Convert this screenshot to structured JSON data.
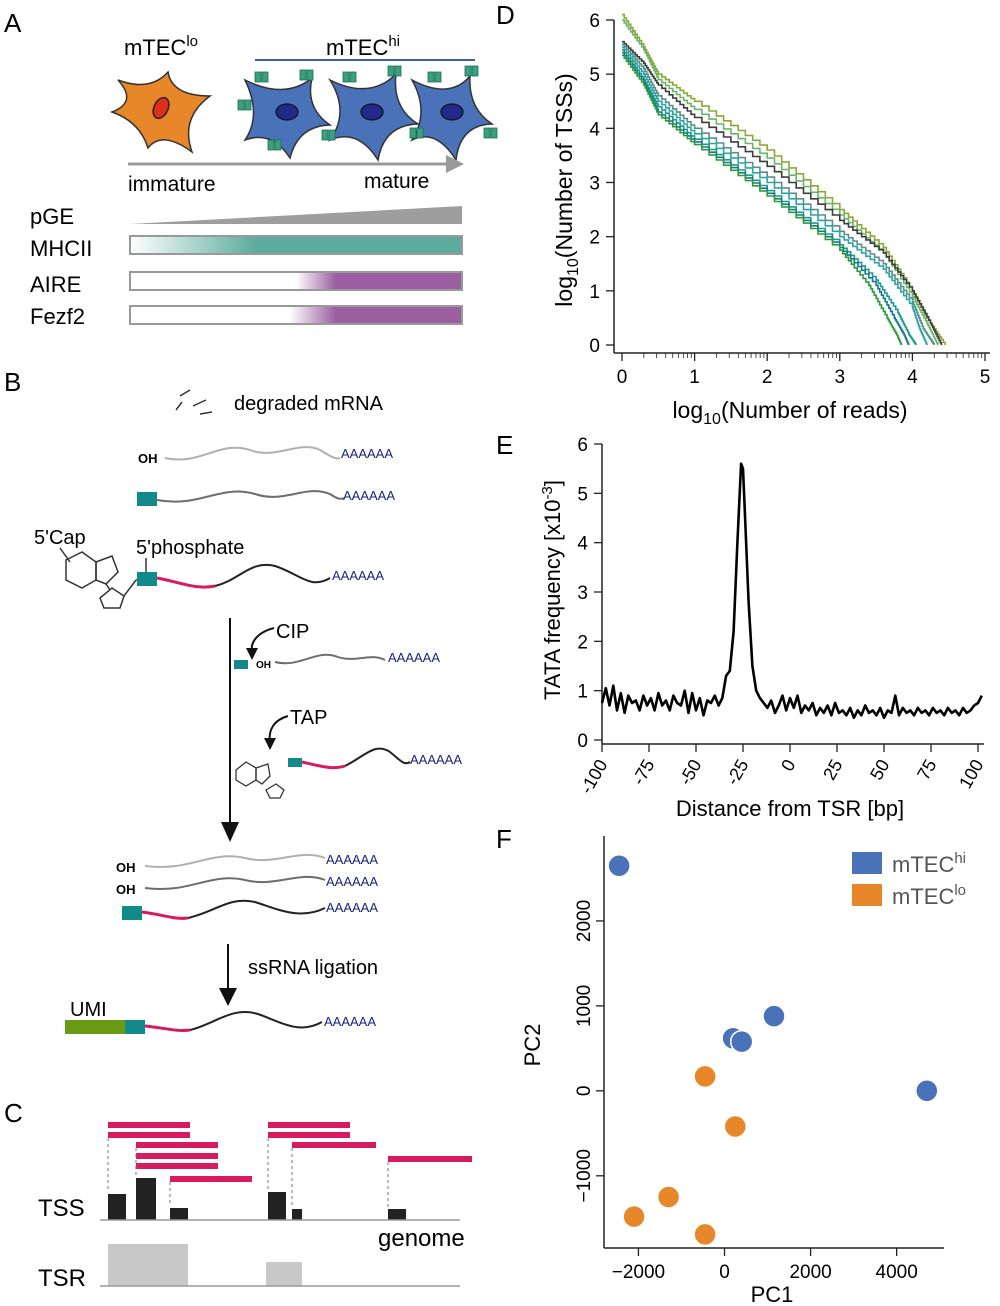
{
  "panels": {
    "A": {
      "letter": "A",
      "mtec_lo": "mTEC",
      "mtec_lo_sup": "lo",
      "mtec_hi": "mTEC",
      "mtec_hi_sup": "hi",
      "immature": "immature",
      "mature": "mature",
      "rows": [
        "pGE",
        "MHCII",
        "AIRE",
        "Fezf2"
      ],
      "colors": {
        "lo_cell": "#e8862a",
        "hi_cell": "#4a72b8",
        "mhc": "#5aac9c",
        "aire": "#9b5ea1",
        "pge": "#9e9e9e"
      }
    },
    "B": {
      "letter": "B",
      "degraded": "degraded mRNA",
      "oh": "OH",
      "polyA": "AAAAAA",
      "cap": "5'Cap",
      "phosphate": "5'phosphate",
      "cip": "CIP",
      "tap": "TAP",
      "ligation": "ssRNA ligation",
      "umi": "UMI",
      "colors": {
        "teal": "#138a8a",
        "magenta": "#d81b60",
        "umi": "#6a9a14",
        "polyA": "#1a237e"
      }
    },
    "C": {
      "letter": "C",
      "tss": "TSS",
      "tsr": "TSR",
      "genome": "genome"
    },
    "D": {
      "letter": "D",
      "xlabel_pre": "log",
      "xlabel_sub": "10",
      "xlabel_post": "(Number of reads)",
      "ylabel_pre": "log",
      "ylabel_sub": "10",
      "ylabel_post": "(Number of TSSs)"
    },
    "E": {
      "letter": "E",
      "xlabel": "Distance from TSR [bp]",
      "ylabel_pre": "TATA frequency [x10",
      "ylabel_sup": "-3",
      "ylabel_post": "]"
    },
    "F": {
      "letter": "F",
      "xlabel": "PC1",
      "ylabel": "PC2",
      "legend": [
        {
          "label": "mTEC",
          "sup": "hi",
          "color": "#4a72b8"
        },
        {
          "label": "mTEC",
          "sup": "lo",
          "color": "#e8862a"
        }
      ]
    }
  },
  "chart_data": [
    {
      "panel": "D",
      "type": "line",
      "xlim": [
        0,
        5
      ],
      "ylim": [
        0,
        6
      ],
      "xticks": [
        "0",
        "1",
        "2",
        "3",
        "4",
        "5"
      ],
      "yticks": [
        "0",
        "1",
        "2",
        "3",
        "4",
        "5",
        "6"
      ],
      "xlabel": "log10(Number of reads)",
      "ylabel": "log10(Number of TSSs)",
      "series": [
        {
          "color": "#8aa83a",
          "points": [
            [
              0,
              6.1
            ],
            [
              0.3,
              5.5
            ],
            [
              0.5,
              5.0
            ],
            [
              1,
              4.5
            ],
            [
              2,
              3.6
            ],
            [
              3,
              2.5
            ],
            [
              3.6,
              1.8
            ],
            [
              4,
              1.0
            ],
            [
              4.2,
              0.5
            ],
            [
              4.45,
              0
            ]
          ]
        },
        {
          "color": "#6bb56b",
          "points": [
            [
              0,
              6.0
            ],
            [
              0.3,
              5.45
            ],
            [
              0.5,
              4.9
            ],
            [
              1,
              4.35
            ],
            [
              2,
              3.45
            ],
            [
              3,
              2.4
            ],
            [
              3.6,
              1.7
            ],
            [
              4,
              0.9
            ],
            [
              4.2,
              0.4
            ],
            [
              4.35,
              0
            ]
          ]
        },
        {
          "color": "#3d3d3d",
          "points": [
            [
              0,
              5.6
            ],
            [
              0.3,
              5.2
            ],
            [
              0.5,
              4.8
            ],
            [
              1,
              4.2
            ],
            [
              2,
              3.3
            ],
            [
              3,
              2.3
            ],
            [
              3.6,
              1.7
            ],
            [
              4,
              1.0
            ],
            [
              4.25,
              0.4
            ],
            [
              4.4,
              0
            ]
          ]
        },
        {
          "color": "#5a8f8a",
          "points": [
            [
              0,
              5.55
            ],
            [
              0.3,
              5.1
            ],
            [
              0.5,
              4.6
            ],
            [
              1,
              4.0
            ],
            [
              2,
              3.1
            ],
            [
              3,
              2.1
            ],
            [
              3.6,
              1.5
            ],
            [
              4,
              0.8
            ],
            [
              4.15,
              0.3
            ],
            [
              4.3,
              0
            ]
          ]
        },
        {
          "color": "#2aa6a6",
          "points": [
            [
              0,
              5.5
            ],
            [
              0.3,
              5.0
            ],
            [
              0.5,
              4.5
            ],
            [
              1,
              3.9
            ],
            [
              2,
              3.0
            ],
            [
              3,
              2.0
            ],
            [
              3.6,
              1.4
            ],
            [
              4,
              0.7
            ],
            [
              4.1,
              0.3
            ],
            [
              4.2,
              0
            ]
          ]
        },
        {
          "color": "#1e9a8a",
          "points": [
            [
              0,
              5.45
            ],
            [
              0.3,
              4.9
            ],
            [
              0.5,
              4.4
            ],
            [
              1,
              3.8
            ],
            [
              2,
              2.85
            ],
            [
              3,
              1.85
            ],
            [
              3.5,
              1.2
            ],
            [
              3.8,
              0.6
            ],
            [
              3.95,
              0.2
            ],
            [
              4.05,
              0
            ]
          ]
        },
        {
          "color": "#167a8a",
          "points": [
            [
              0,
              5.4
            ],
            [
              0.3,
              4.85
            ],
            [
              0.5,
              4.3
            ],
            [
              1,
              3.75
            ],
            [
              2,
              2.8
            ],
            [
              3,
              1.8
            ],
            [
              3.5,
              1.1
            ],
            [
              3.75,
              0.5
            ],
            [
              3.9,
              0.15
            ],
            [
              3.95,
              0
            ]
          ]
        },
        {
          "color": "#2d9b3a",
          "points": [
            [
              0,
              5.35
            ],
            [
              0.3,
              4.8
            ],
            [
              0.5,
              4.25
            ],
            [
              1,
              3.7
            ],
            [
              2,
              2.75
            ],
            [
              3,
              1.75
            ],
            [
              3.4,
              1.1
            ],
            [
              3.65,
              0.5
            ],
            [
              3.8,
              0.15
            ],
            [
              3.85,
              0
            ]
          ]
        }
      ]
    },
    {
      "panel": "E",
      "type": "line",
      "xlim": [
        -100,
        100
      ],
      "ylim": [
        0,
        6
      ],
      "xticks": [
        "-100",
        "-75",
        "-50",
        "-25",
        "0",
        "25",
        "50",
        "75",
        "100"
      ],
      "yticks": [
        "0",
        "1",
        "2",
        "3",
        "4",
        "5",
        "6"
      ],
      "xlabel": "Distance from TSR [bp]",
      "ylabel": "TATA frequency [x10-3]",
      "series": [
        {
          "color": "#000000",
          "points": [
            [
              -100,
              0.75
            ],
            [
              -98,
              1.05
            ],
            [
              -96,
              0.7
            ],
            [
              -94,
              1.1
            ],
            [
              -92,
              0.6
            ],
            [
              -90,
              0.95
            ],
            [
              -88,
              0.55
            ],
            [
              -86,
              0.9
            ],
            [
              -84,
              0.75
            ],
            [
              -82,
              0.8
            ],
            [
              -80,
              0.6
            ],
            [
              -78,
              0.9
            ],
            [
              -76,
              0.7
            ],
            [
              -74,
              0.85
            ],
            [
              -72,
              0.6
            ],
            [
              -70,
              0.95
            ],
            [
              -68,
              0.7
            ],
            [
              -66,
              0.8
            ],
            [
              -64,
              0.6
            ],
            [
              -62,
              0.9
            ],
            [
              -60,
              0.75
            ],
            [
              -58,
              0.7
            ],
            [
              -56,
              1.0
            ],
            [
              -54,
              0.55
            ],
            [
              -52,
              0.95
            ],
            [
              -50,
              0.6
            ],
            [
              -48,
              0.85
            ],
            [
              -46,
              0.5
            ],
            [
              -44,
              0.8
            ],
            [
              -42,
              0.75
            ],
            [
              -40,
              0.9
            ],
            [
              -38,
              0.7
            ],
            [
              -36,
              0.85
            ],
            [
              -34,
              1.3
            ],
            [
              -32,
              1.4
            ],
            [
              -30,
              2.2
            ],
            [
              -28,
              4.0
            ],
            [
              -26,
              5.6
            ],
            [
              -25,
              5.5
            ],
            [
              -24,
              4.6
            ],
            [
              -22,
              2.8
            ],
            [
              -20,
              1.5
            ],
            [
              -18,
              1.0
            ],
            [
              -16,
              0.85
            ],
            [
              -14,
              0.75
            ],
            [
              -12,
              0.65
            ],
            [
              -10,
              0.8
            ],
            [
              -8,
              0.55
            ],
            [
              -6,
              0.7
            ],
            [
              -4,
              0.9
            ],
            [
              -2,
              0.6
            ],
            [
              0,
              0.85
            ],
            [
              2,
              0.65
            ],
            [
              4,
              0.9
            ],
            [
              6,
              0.55
            ],
            [
              8,
              0.7
            ],
            [
              10,
              0.6
            ],
            [
              12,
              0.75
            ],
            [
              14,
              0.5
            ],
            [
              16,
              0.65
            ],
            [
              18,
              0.55
            ],
            [
              20,
              0.7
            ],
            [
              22,
              0.5
            ],
            [
              24,
              0.75
            ],
            [
              26,
              0.55
            ],
            [
              28,
              0.6
            ],
            [
              30,
              0.5
            ],
            [
              32,
              0.65
            ],
            [
              34,
              0.45
            ],
            [
              36,
              0.6
            ],
            [
              38,
              0.5
            ],
            [
              40,
              0.7
            ],
            [
              42,
              0.55
            ],
            [
              44,
              0.6
            ],
            [
              46,
              0.5
            ],
            [
              48,
              0.65
            ],
            [
              50,
              0.45
            ],
            [
              52,
              0.6
            ],
            [
              54,
              0.55
            ],
            [
              56,
              0.9
            ],
            [
              58,
              0.5
            ],
            [
              60,
              0.65
            ],
            [
              62,
              0.55
            ],
            [
              64,
              0.6
            ],
            [
              66,
              0.5
            ],
            [
              68,
              0.65
            ],
            [
              70,
              0.55
            ],
            [
              72,
              0.6
            ],
            [
              74,
              0.5
            ],
            [
              76,
              0.65
            ],
            [
              78,
              0.55
            ],
            [
              80,
              0.6
            ],
            [
              82,
              0.5
            ],
            [
              84,
              0.65
            ],
            [
              86,
              0.55
            ],
            [
              88,
              0.6
            ],
            [
              90,
              0.5
            ],
            [
              92,
              0.65
            ],
            [
              94,
              0.55
            ],
            [
              96,
              0.6
            ],
            [
              98,
              0.7
            ],
            [
              100,
              0.75
            ],
            [
              102,
              0.9
            ]
          ]
        }
      ]
    },
    {
      "panel": "F",
      "type": "scatter",
      "xlim": [
        -2800,
        5100
      ],
      "ylim": [
        -1850,
        3000
      ],
      "xticks": [
        -2000,
        0,
        2000,
        4000
      ],
      "yticks": [
        -1000,
        0,
        1000,
        2000
      ],
      "xlabel": "PC1",
      "ylabel": "PC2",
      "series": [
        {
          "name": "mTEChi",
          "color": "#4a72b8",
          "points": [
            [
              -2450,
              2650
            ],
            [
              200,
              620
            ],
            [
              400,
              580
            ],
            [
              1150,
              880
            ],
            [
              4700,
              0
            ]
          ]
        },
        {
          "name": "mTEClo",
          "color": "#e8862a",
          "points": [
            [
              -2100,
              -1480
            ],
            [
              -1300,
              -1250
            ],
            [
              -450,
              170
            ],
            [
              250,
              -420
            ],
            [
              -450,
              -1690
            ]
          ]
        }
      ]
    }
  ]
}
